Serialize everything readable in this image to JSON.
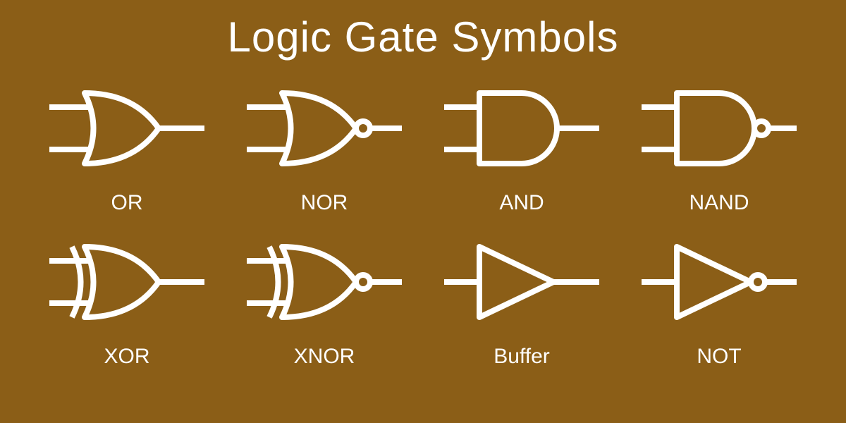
{
  "diagram": {
    "type": "infographic",
    "title": "Logic Gate Symbols",
    "background_color": "#8b5e17",
    "stroke_color": "#ffffff",
    "text_color": "#ffffff",
    "title_fontsize": 60,
    "label_fontsize": 30,
    "stroke_width": 8,
    "grid": {
      "cols": 4,
      "rows": 2
    },
    "gates": [
      {
        "id": "or",
        "label": "OR",
        "shape": "or",
        "inputs": 2,
        "row": 0,
        "col": 0
      },
      {
        "id": "nor",
        "label": "NOR",
        "shape": "or_neg",
        "inputs": 2,
        "row": 0,
        "col": 1
      },
      {
        "id": "and",
        "label": "AND",
        "shape": "and",
        "inputs": 2,
        "row": 0,
        "col": 2
      },
      {
        "id": "nand",
        "label": "NAND",
        "shape": "and_neg",
        "inputs": 2,
        "row": 0,
        "col": 3
      },
      {
        "id": "xor",
        "label": "XOR",
        "shape": "xor",
        "inputs": 2,
        "row": 1,
        "col": 0
      },
      {
        "id": "xnor",
        "label": "XNOR",
        "shape": "xor_neg",
        "inputs": 2,
        "row": 1,
        "col": 1
      },
      {
        "id": "buffer",
        "label": "Buffer",
        "shape": "tri",
        "inputs": 1,
        "row": 1,
        "col": 2
      },
      {
        "id": "not",
        "label": "NOT",
        "shape": "tri_neg",
        "inputs": 1,
        "row": 1,
        "col": 3
      }
    ]
  }
}
